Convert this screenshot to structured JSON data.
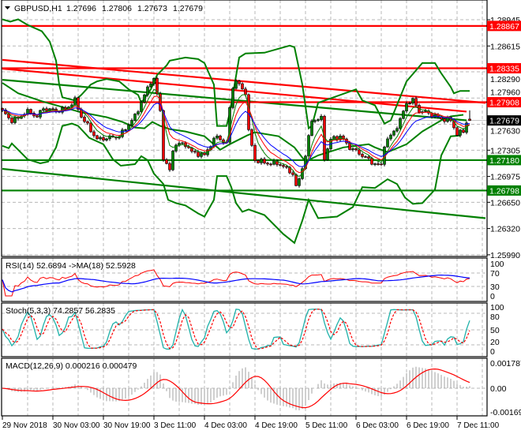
{
  "header": {
    "menu_icon": "triangle-down-icon",
    "symbol": "GBPUSD,H1",
    "open": "1.27696",
    "high": "1.27806",
    "low": "1.27673",
    "close": "1.27679"
  },
  "colors": {
    "resistance": "#ff0000",
    "support": "#008000",
    "bull_candle": "#008000",
    "bear_candle": "#ff0000",
    "rsi": "#ff0000",
    "rsi_ma": "#0000ff",
    "stoch_main": "#20b2aa",
    "stoch_signal": "#ff0000",
    "macd_hist": "#a0a0a0",
    "macd_signal": "#ff0000"
  },
  "chart_data": {
    "type": "candlestick",
    "symbol": "GBPUSD",
    "timeframe": "H1",
    "ylim": [
      1.2599,
      1.2895
    ],
    "grid": true,
    "x_ticks": [
      "29 Nov 2018",
      "30 Nov 03:00",
      "30 Nov 19:00",
      "3 Dec 11:00",
      "4 Dec 03:00",
      "4 Dec 19:00",
      "5 Dec 11:00",
      "6 Dec 03:00",
      "6 Dec 19:00",
      "7 Dec 11:00"
    ],
    "y_ticks": [
      "1.28945",
      "1.28615",
      "1.28290",
      "1.27960",
      "1.27630",
      "1.27305",
      "1.26975",
      "1.26650",
      "1.26320",
      "1.25990"
    ],
    "close_path_bar_price": [
      [
        0,
        1.278
      ],
      [
        2.5,
        1.2768
      ],
      [
        5,
        1.277
      ],
      [
        7.5,
        1.278
      ],
      [
        11,
        1.2773
      ],
      [
        13,
        1.2783
      ],
      [
        17,
        1.278
      ],
      [
        20,
        1.2782
      ],
      [
        23,
        1.2793
      ],
      [
        25,
        1.2773
      ],
      [
        30,
        1.2744
      ],
      [
        37,
        1.2748
      ],
      [
        42,
        1.2773
      ],
      [
        47,
        1.2817
      ],
      [
        48,
        1.282
      ],
      [
        50,
        1.278
      ],
      [
        51,
        1.2721
      ],
      [
        53,
        1.2704
      ],
      [
        54,
        1.2731
      ],
      [
        55,
        1.2738
      ],
      [
        58,
        1.2738
      ],
      [
        60,
        1.2728
      ],
      [
        64,
        1.2724
      ],
      [
        66,
        1.2738
      ],
      [
        68,
        1.2748
      ],
      [
        71,
        1.2738
      ],
      [
        72.5,
        1.2807
      ],
      [
        74,
        1.2817
      ],
      [
        77,
        1.2803
      ],
      [
        78,
        1.2754
      ],
      [
        80,
        1.2718
      ],
      [
        84,
        1.2714
      ],
      [
        87.5,
        1.2714
      ],
      [
        92,
        1.2701
      ],
      [
        93,
        1.2684
      ],
      [
        94,
        1.2694
      ],
      [
        96,
        1.2724
      ],
      [
        98,
        1.2768
      ],
      [
        101,
        1.277
      ],
      [
        102,
        1.2721
      ],
      [
        104,
        1.2744
      ],
      [
        107,
        1.2748
      ],
      [
        110,
        1.2734
      ],
      [
        114,
        1.2724
      ],
      [
        117.5,
        1.2714
      ],
      [
        120,
        1.2711
      ],
      [
        121,
        1.2738
      ],
      [
        124,
        1.2754
      ],
      [
        126,
        1.2768
      ],
      [
        128,
        1.279
      ],
      [
        130,
        1.2793
      ],
      [
        132,
        1.278
      ],
      [
        135,
        1.2777
      ],
      [
        139,
        1.277
      ],
      [
        142,
        1.2768
      ],
      [
        144,
        1.2751
      ],
      [
        146,
        1.2754
      ],
      [
        147,
        1.2766
      ],
      [
        148,
        1.27679
      ]
    ],
    "bollinger_upper": [
      [
        0,
        1.2895
      ],
      [
        2.5,
        1.2892
      ],
      [
        5,
        1.2895
      ],
      [
        8,
        1.2888
      ],
      [
        12.5,
        1.288
      ],
      [
        15,
        1.2867
      ],
      [
        17,
        1.2843
      ],
      [
        18,
        1.2813
      ],
      [
        19,
        1.2797
      ],
      [
        23,
        1.2793
      ],
      [
        25,
        1.28
      ],
      [
        28,
        1.2813
      ],
      [
        30,
        1.2817
      ],
      [
        33,
        1.282
      ],
      [
        37,
        1.2817
      ],
      [
        40,
        1.2807
      ],
      [
        43,
        1.28
      ],
      [
        44,
        1.279
      ],
      [
        47,
        1.2807
      ],
      [
        49,
        1.2825
      ],
      [
        52,
        1.2837
      ],
      [
        53,
        1.2843
      ],
      [
        58,
        1.2847
      ],
      [
        62,
        1.2845
      ],
      [
        64,
        1.284
      ],
      [
        67,
        1.2813
      ],
      [
        68,
        1.2761
      ],
      [
        71,
        1.2761
      ],
      [
        72,
        1.2777
      ],
      [
        75,
        1.2847
      ],
      [
        77,
        1.2852
      ],
      [
        83,
        1.2853
      ],
      [
        91,
        1.2862
      ],
      [
        92.5,
        1.286
      ],
      [
        95,
        1.2813
      ],
      [
        97,
        1.2758
      ],
      [
        98,
        1.2761
      ],
      [
        100,
        1.279
      ],
      [
        112,
        1.2807
      ],
      [
        114,
        1.2793
      ],
      [
        118,
        1.2787
      ],
      [
        121,
        1.2764
      ],
      [
        123,
        1.2768
      ],
      [
        128,
        1.2817
      ],
      [
        133,
        1.284
      ],
      [
        137,
        1.284
      ],
      [
        139,
        1.2827
      ],
      [
        142,
        1.281
      ],
      [
        143,
        1.2802
      ],
      [
        145,
        1.2805
      ],
      [
        148,
        1.2805
      ]
    ],
    "bollinger_middle": [
      [
        0,
        1.2815
      ],
      [
        5,
        1.2802
      ],
      [
        12.5,
        1.2792
      ],
      [
        25,
        1.2778
      ],
      [
        33,
        1.2772
      ],
      [
        38,
        1.2766
      ],
      [
        42,
        1.2759
      ],
      [
        45,
        1.2758
      ],
      [
        47.5,
        1.2766
      ],
      [
        50,
        1.2761
      ],
      [
        53,
        1.2757
      ],
      [
        58,
        1.2754
      ],
      [
        64,
        1.2748
      ],
      [
        69,
        1.2731
      ],
      [
        72,
        1.2738
      ],
      [
        77.5,
        1.2749
      ],
      [
        80,
        1.2753
      ],
      [
        87.5,
        1.2748
      ],
      [
        92.5,
        1.2734
      ],
      [
        96,
        1.2716
      ],
      [
        100,
        1.2724
      ],
      [
        108,
        1.2734
      ],
      [
        116,
        1.2738
      ],
      [
        118,
        1.2734
      ],
      [
        122,
        1.2728
      ],
      [
        128,
        1.2738
      ],
      [
        133,
        1.2754
      ],
      [
        139,
        1.2768
      ],
      [
        142,
        1.2773
      ],
      [
        146,
        1.2775
      ]
    ],
    "bollinger_lower": [
      [
        0,
        1.2736
      ],
      [
        2,
        1.2733
      ],
      [
        3,
        1.2739
      ],
      [
        5,
        1.2731
      ],
      [
        8,
        1.2719
      ],
      [
        12,
        1.2714
      ],
      [
        14.5,
        1.2716
      ],
      [
        17,
        1.2734
      ],
      [
        19,
        1.2761
      ],
      [
        22,
        1.2764
      ],
      [
        24,
        1.2761
      ],
      [
        27.5,
        1.2746
      ],
      [
        32,
        1.2738
      ],
      [
        35,
        1.2719
      ],
      [
        37.5,
        1.2711
      ],
      [
        42,
        1.2713
      ],
      [
        44,
        1.2723
      ],
      [
        46,
        1.2718
      ],
      [
        48,
        1.2701
      ],
      [
        51,
        1.2688
      ],
      [
        52.5,
        1.2668
      ],
      [
        55,
        1.2664
      ],
      [
        58,
        1.2661
      ],
      [
        62,
        1.2651
      ],
      [
        64,
        1.2647
      ],
      [
        67,
        1.2668
      ],
      [
        68,
        1.2698
      ],
      [
        71,
        1.2698
      ],
      [
        72.5,
        1.2684
      ],
      [
        74,
        1.2664
      ],
      [
        76,
        1.2653
      ],
      [
        78,
        1.2656
      ],
      [
        83,
        1.2649
      ],
      [
        89,
        1.2625
      ],
      [
        92.5,
        1.2614
      ],
      [
        95,
        1.2642
      ],
      [
        97,
        1.2668
      ],
      [
        100,
        1.2645
      ],
      [
        106,
        1.2647
      ],
      [
        111,
        1.2659
      ],
      [
        114,
        1.2684
      ],
      [
        118,
        1.2683
      ],
      [
        122,
        1.2694
      ],
      [
        125,
        1.2688
      ],
      [
        127.5,
        1.2671
      ],
      [
        130,
        1.2663
      ],
      [
        133,
        1.2664
      ],
      [
        137,
        1.2681
      ],
      [
        139,
        1.2724
      ],
      [
        142,
        1.2748
      ],
      [
        145,
        1.2749
      ]
    ],
    "horizontal_levels": [
      {
        "price": "1.28867",
        "kind": "resistance"
      },
      {
        "price": "1.28335",
        "kind": "resistance"
      },
      {
        "price": "1.27908",
        "kind": "resistance"
      },
      {
        "price": "1.27180",
        "kind": "support"
      },
      {
        "price": "1.26798",
        "kind": "support"
      }
    ],
    "trend_lines": [
      {
        "kind": "resistance",
        "from": [
          0,
          1.2844
        ],
        "to": [
          153,
          1.279
        ]
      },
      {
        "kind": "resistance",
        "from": [
          0,
          1.2833
        ],
        "to": [
          147,
          1.2779
        ]
      },
      {
        "kind": "support",
        "from": [
          0,
          1.2819
        ],
        "to": [
          147,
          1.2768
        ]
      },
      {
        "kind": "support",
        "from": [
          0,
          1.2707
        ],
        "to": [
          153,
          1.2645
        ]
      }
    ],
    "current_price": "1.27679",
    "rsi": {
      "label": "RSI(14) 52.6894  ->MA(18) 52.5928",
      "ticks": [
        "100",
        "70",
        "30",
        "0"
      ]
    },
    "stoch": {
      "label": "Stoch(5,3,3) 74.2857 56.2835",
      "ticks": [
        "100",
        "80",
        "50",
        "20",
        "0"
      ]
    },
    "macd": {
      "label": "MACD(12,26,9) 0.000216 0.000479",
      "ticks": [
        "0.001787",
        "0.00",
        "-0.001696"
      ]
    }
  }
}
